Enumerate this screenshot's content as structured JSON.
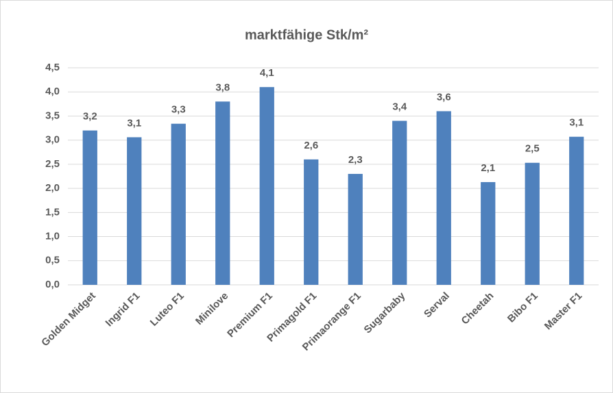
{
  "chart_data": {
    "type": "bar",
    "title": "marktfähige Stk/m²",
    "categories": [
      "Golden Midget",
      "Ingrid F1",
      "Luteo F1",
      "Minilove",
      "Premium F1",
      "Primagold F1",
      "Primaorange F1",
      "Sugarbaby",
      "Serval",
      "Cheetah",
      "Bibo F1",
      "Master F1"
    ],
    "values": [
      3.2,
      3.06,
      3.34,
      3.8,
      4.1,
      2.6,
      2.3,
      3.4,
      3.6,
      2.13,
      2.53,
      3.07
    ],
    "value_labels": [
      "3,2",
      "3,1",
      "3,3",
      "3,8",
      "4,1",
      "2,6",
      "2,3",
      "3,4",
      "3,6",
      "2,1",
      "2,5",
      "3,1"
    ],
    "color": "#4f81bd",
    "ylim": [
      0,
      4.5
    ],
    "yticks": [
      {
        "value": 0,
        "label": "0,0"
      },
      {
        "value": 0.5,
        "label": "0,5"
      },
      {
        "value": 1,
        "label": "1,0"
      },
      {
        "value": 1.5,
        "label": "1,5"
      },
      {
        "value": 2,
        "label": "2,0"
      },
      {
        "value": 2.5,
        "label": "2,5"
      },
      {
        "value": 3,
        "label": "3,0"
      },
      {
        "value": 3.5,
        "label": "3,5"
      },
      {
        "value": 4,
        "label": "4,0"
      },
      {
        "value": 4.5,
        "label": "4,5"
      }
    ],
    "grid": true
  }
}
